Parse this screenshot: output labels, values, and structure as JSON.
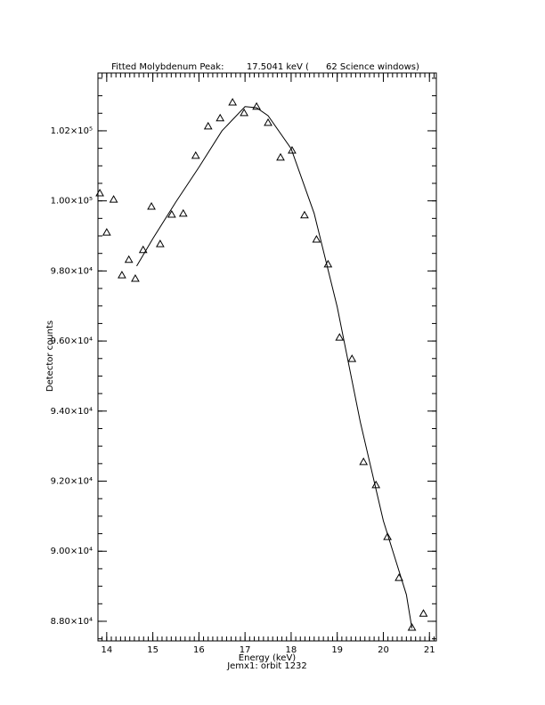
{
  "chart_data": {
    "type": "scatter",
    "title": "Fitted Molybdenum Peak:        17.5041 keV (      62 Science windows)",
    "xlabel": "Energy (keV)",
    "footer": "Jemx1: orbit 1232",
    "ylabel": "Detector counts",
    "xlim": [
      13.81,
      21.15
    ],
    "ylim": [
      87440,
      103650
    ],
    "xticks": [
      14,
      15,
      16,
      17,
      18,
      19,
      20,
      21
    ],
    "yticks": [
      {
        "value": 88000,
        "label": "8.80×10⁴"
      },
      {
        "value": 90000,
        "label": "9.00×10⁴"
      },
      {
        "value": 92000,
        "label": "9.20×10⁴"
      },
      {
        "value": 94000,
        "label": "9.40×10⁴"
      },
      {
        "value": 96000,
        "label": "9.60×10⁴"
      },
      {
        "value": 98000,
        "label": "9.80×10⁴"
      },
      {
        "value": 100000,
        "label": "1.00×10⁵"
      },
      {
        "value": 102000,
        "label": "1.02×10⁵"
      }
    ],
    "series": [
      {
        "marker": "triangle",
        "color": "#000000",
        "x": [
          13.85,
          14.0,
          14.15,
          14.33,
          14.48,
          14.62,
          14.79,
          14.97,
          15.16,
          15.41,
          15.66,
          15.93,
          16.2,
          16.46,
          16.73,
          16.98,
          17.25,
          17.5,
          17.77,
          18.02,
          18.29,
          18.55,
          18.8,
          19.05,
          19.32,
          19.57,
          19.84,
          20.09,
          20.34,
          20.62,
          20.87
        ],
        "values": [
          100220,
          99100,
          100040,
          97880,
          98320,
          97780,
          98600,
          99840,
          98770,
          99610,
          99640,
          101290,
          102130,
          102360,
          102810,
          102510,
          102690,
          102230,
          101240,
          101440,
          99590,
          98900,
          98190,
          96100,
          95490,
          92550,
          91890,
          90410,
          89240,
          87820,
          88220
        ]
      },
      {
        "marker": "line",
        "color": "#000000",
        "x": [
          14.65,
          15.0,
          15.5,
          16.0,
          16.5,
          17.0,
          17.25,
          17.5,
          18.0,
          18.5,
          19.0,
          19.5,
          20.0,
          20.5,
          20.62
        ],
        "values": [
          98140,
          98920,
          99970,
          100960,
          102000,
          102690,
          102660,
          102430,
          101490,
          99640,
          96970,
          93690,
          90870,
          88760,
          87800
        ]
      }
    ]
  }
}
